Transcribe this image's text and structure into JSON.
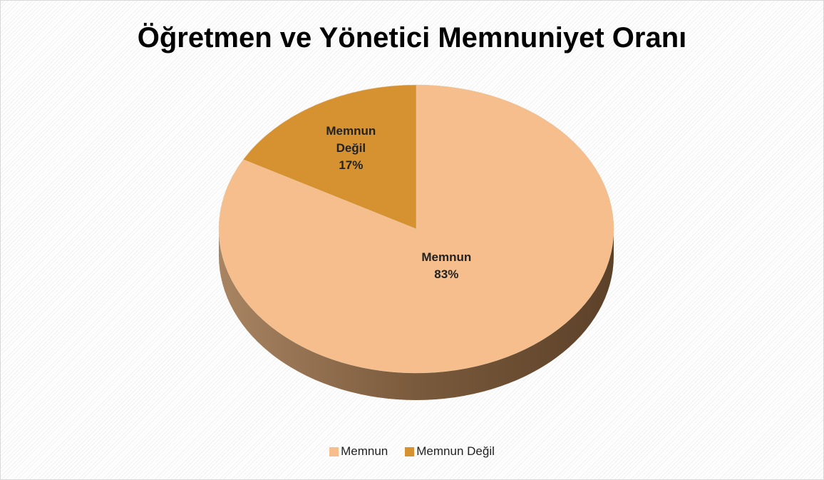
{
  "chart_data": {
    "type": "pie",
    "title": "Öğretmen ve Yönetici Memnuniyet Oranı",
    "categories": [
      "Memnun",
      "Memnun Değil"
    ],
    "values": [
      83,
      17
    ],
    "value_labels": [
      "83%",
      "17%"
    ],
    "colors": [
      "#F5BE8C",
      "#D69230"
    ],
    "legend": "bottom"
  }
}
